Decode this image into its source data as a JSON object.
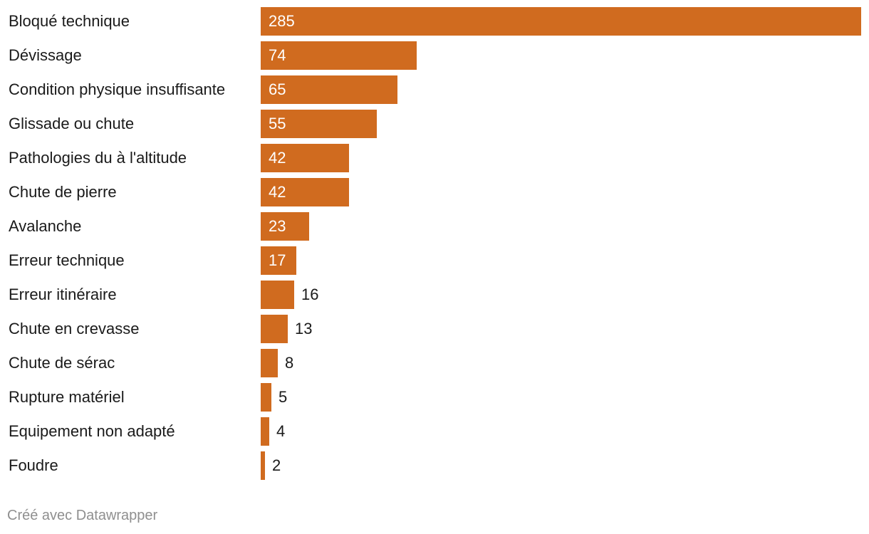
{
  "chart_data": {
    "type": "bar",
    "orientation": "horizontal",
    "categories": [
      "Bloqué technique",
      "Dévissage",
      "Condition physique insuffisante",
      "Glissade ou chute",
      "Pathologies du à l'altitude",
      "Chute de pierre",
      "Avalanche",
      "Erreur technique",
      "Erreur itinéraire",
      "Chute en crevasse",
      "Chute de sérac",
      "Rupture matériel",
      "Equipement non adapté",
      "Foudre"
    ],
    "values": [
      285,
      74,
      65,
      55,
      42,
      42,
      23,
      17,
      16,
      13,
      8,
      5,
      4,
      2
    ],
    "title": "",
    "xlabel": "",
    "ylabel": "",
    "xlim": [
      0,
      285
    ],
    "grid": false,
    "legend": "none",
    "bar_color": "#d06b1f",
    "data_labels": true
  },
  "footer": {
    "credit": "Créé avec Datawrapper"
  }
}
